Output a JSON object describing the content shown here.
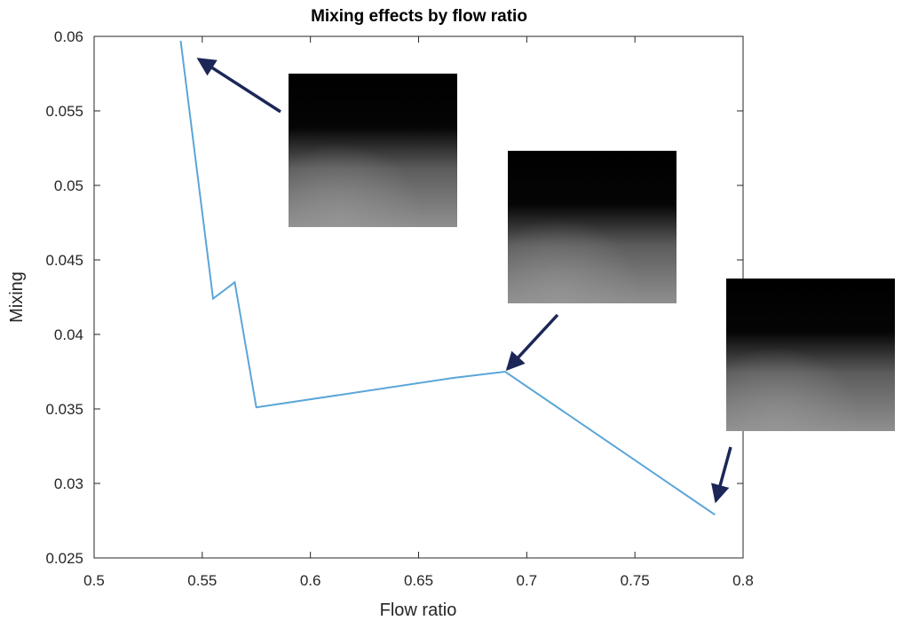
{
  "chart_data": {
    "type": "line",
    "title": "Mixing effects by flow ratio",
    "xlabel": "Flow ratio",
    "ylabel": "Mixing",
    "xlim": [
      0.5,
      0.8
    ],
    "ylim": [
      0.025,
      0.06
    ],
    "xticks": [
      0.5,
      0.55,
      0.6,
      0.65,
      0.7,
      0.75,
      0.8
    ],
    "xtick_labels": [
      "0.5",
      "0.55",
      "0.6",
      "0.65",
      "0.7",
      "0.75",
      "0.8"
    ],
    "yticks": [
      0.025,
      0.03,
      0.035,
      0.04,
      0.045,
      0.05,
      0.055,
      0.06
    ],
    "ytick_labels": [
      "0.025",
      "0.03",
      "0.035",
      "0.04",
      "0.045",
      "0.05",
      "0.055",
      "0.06"
    ],
    "grid": false,
    "series": [
      {
        "color": "#5aa6d8",
        "x": [
          0.54,
          0.555,
          0.565,
          0.575,
          0.667,
          0.69,
          0.787
        ],
        "y": [
          0.0597,
          0.0424,
          0.0435,
          0.0351,
          0.0371,
          0.0375,
          0.0279
        ]
      }
    ],
    "insets": [
      {
        "description": "grayscale flow image",
        "points_to": [
          0.547,
          0.0586
        ]
      },
      {
        "description": "grayscale flow image",
        "points_to": [
          0.69,
          0.0375
        ]
      },
      {
        "description": "grayscale flow image",
        "points_to": [
          0.787,
          0.0286
        ]
      }
    ],
    "arrow_color": "#1c2757"
  }
}
